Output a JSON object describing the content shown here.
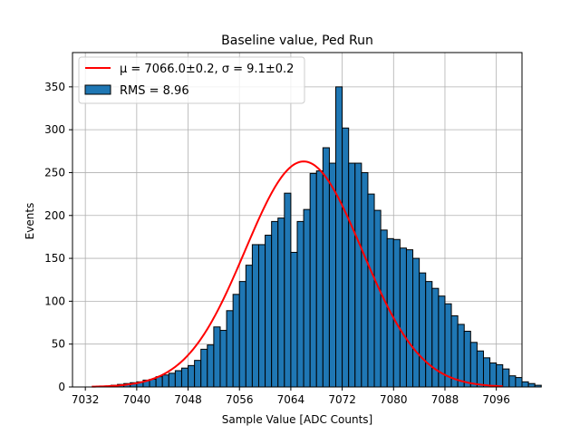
{
  "chart_data": {
    "type": "bar",
    "title": "Baseline value, Ped Run",
    "xlabel": "Sample Value [ADC Counts]",
    "ylabel": "Events",
    "xlim": [
      7030,
      7100
    ],
    "ylim": [
      0,
      390
    ],
    "xticks": [
      7032,
      7040,
      7048,
      7056,
      7064,
      7072,
      7080,
      7088,
      7096
    ],
    "yticks": [
      0,
      50,
      100,
      150,
      200,
      250,
      300,
      350
    ],
    "grid": true,
    "legend_position": "top-left",
    "colors": {
      "bars": "#1f77b4",
      "bar_edge": "#000000",
      "fit": "#ff0000",
      "grid": "#b0b0b0"
    },
    "histogram": {
      "name": "RMS = 8.96",
      "bin_start": 7036,
      "bin_width": 1,
      "counts": [
        2,
        3,
        4,
        5,
        6,
        8,
        9,
        12,
        14,
        16,
        19,
        22,
        25,
        31,
        44,
        49,
        70,
        66,
        89,
        108,
        123,
        142,
        166,
        166,
        177,
        193,
        197,
        226,
        157,
        193,
        207,
        249,
        252,
        279,
        261,
        350,
        302,
        261,
        261,
        250,
        225,
        206,
        183,
        173,
        172,
        162,
        160,
        150,
        133,
        123,
        115,
        106,
        97,
        83,
        73,
        65,
        52,
        42,
        34,
        28,
        26,
        21,
        13,
        11,
        6,
        4,
        2
      ]
    },
    "fit": {
      "name": "μ = 7066.0±0.2, σ = 9.1±0.2",
      "model": "gaussian",
      "mu": 7066.0,
      "sigma": 9.1,
      "amplitude": 263,
      "x_range": [
        7033,
        7097
      ]
    },
    "legend": {
      "fit_label": "μ = 7066.0±0.2, σ = 9.1±0.2",
      "rms_label": "RMS = 8.96"
    }
  }
}
